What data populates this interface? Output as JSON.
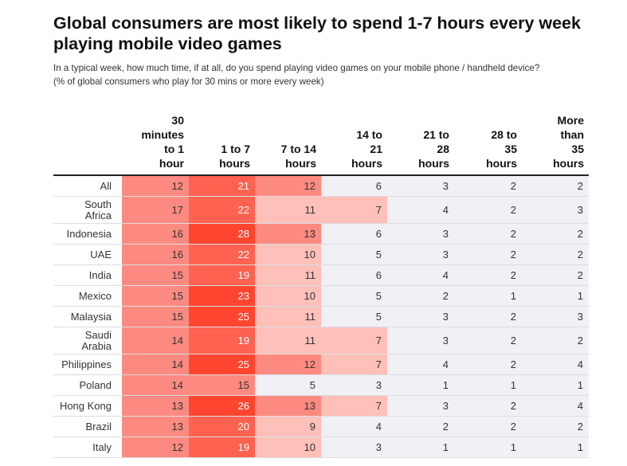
{
  "title": "Global consumers are most likely to spend 1-7 hours every week playing mobile video games",
  "subtitle_lines": [
    "In a typical week, how much time, if at all, do you spend playing video games on your mobile phone / handheld device?",
    "(% of global consumers who play for 30 mins or more every week)"
  ],
  "chart_data": {
    "type": "heatmap",
    "title": "Global consumers are most likely to spend 1-7 hours every week playing mobile video games",
    "columns": [
      "30 minutes to 1 hour",
      "1 to 7 hours",
      "7 to 14 hours",
      "14 to 21 hours",
      "21 to 28 hours",
      "28 to 35 hours",
      "More than 35 hours"
    ],
    "column_header_lines": [
      [
        "30",
        "minutes",
        "to 1",
        "hour"
      ],
      [
        "1 to 7",
        "hours"
      ],
      [
        "7 to 14",
        "hours"
      ],
      [
        "14 to",
        "21",
        "hours"
      ],
      [
        "21 to",
        "28",
        "hours"
      ],
      [
        "28 to",
        "35",
        "hours"
      ],
      [
        "More",
        "than",
        "35",
        "hours"
      ]
    ],
    "rows": [
      {
        "label": "All",
        "label_lines": [
          "All"
        ],
        "values": [
          12,
          21,
          12,
          6,
          3,
          2,
          2
        ]
      },
      {
        "label": "South Africa",
        "label_lines": [
          "South",
          "Africa"
        ],
        "values": [
          17,
          22,
          11,
          7,
          4,
          2,
          3
        ]
      },
      {
        "label": "Indonesia",
        "label_lines": [
          "Indonesia"
        ],
        "values": [
          16,
          28,
          13,
          6,
          3,
          2,
          2
        ]
      },
      {
        "label": "UAE",
        "label_lines": [
          "UAE"
        ],
        "values": [
          16,
          22,
          10,
          5,
          3,
          2,
          2
        ]
      },
      {
        "label": "India",
        "label_lines": [
          "India"
        ],
        "values": [
          15,
          19,
          11,
          6,
          4,
          2,
          2
        ]
      },
      {
        "label": "Mexico",
        "label_lines": [
          "Mexico"
        ],
        "values": [
          15,
          23,
          10,
          5,
          2,
          1,
          1
        ]
      },
      {
        "label": "Malaysia",
        "label_lines": [
          "Malaysia"
        ],
        "values": [
          15,
          25,
          11,
          5,
          3,
          2,
          3
        ]
      },
      {
        "label": "Saudi Arabia",
        "label_lines": [
          "Saudi",
          "Arabia"
        ],
        "values": [
          14,
          19,
          11,
          7,
          3,
          2,
          2
        ]
      },
      {
        "label": "Philippines",
        "label_lines": [
          "Philippines"
        ],
        "values": [
          14,
          25,
          12,
          7,
          4,
          2,
          4
        ]
      },
      {
        "label": "Poland",
        "label_lines": [
          "Poland"
        ],
        "values": [
          14,
          15,
          5,
          3,
          1,
          1,
          1
        ]
      },
      {
        "label": "Hong Kong",
        "label_lines": [
          "Hong Kong"
        ],
        "values": [
          13,
          26,
          13,
          7,
          3,
          2,
          4
        ]
      },
      {
        "label": "Brazil",
        "label_lines": [
          "Brazil"
        ],
        "values": [
          13,
          20,
          9,
          4,
          2,
          2,
          2
        ]
      },
      {
        "label": "Italy",
        "label_lines": [
          "Italy"
        ],
        "values": [
          12,
          19,
          10,
          3,
          1,
          1,
          1
        ]
      }
    ],
    "color_scale": [
      {
        "min": 0,
        "max": 5,
        "color": "#f0f0f5"
      },
      {
        "min": 7,
        "max": 11,
        "color": "#fec0b9"
      },
      {
        "min": 12,
        "max": 18,
        "color": "#fd8a80"
      },
      {
        "min": 19,
        "max": 22,
        "color": "#ff6250"
      },
      {
        "min": 23,
        "max": 30,
        "color": "#ff4530"
      }
    ]
  }
}
